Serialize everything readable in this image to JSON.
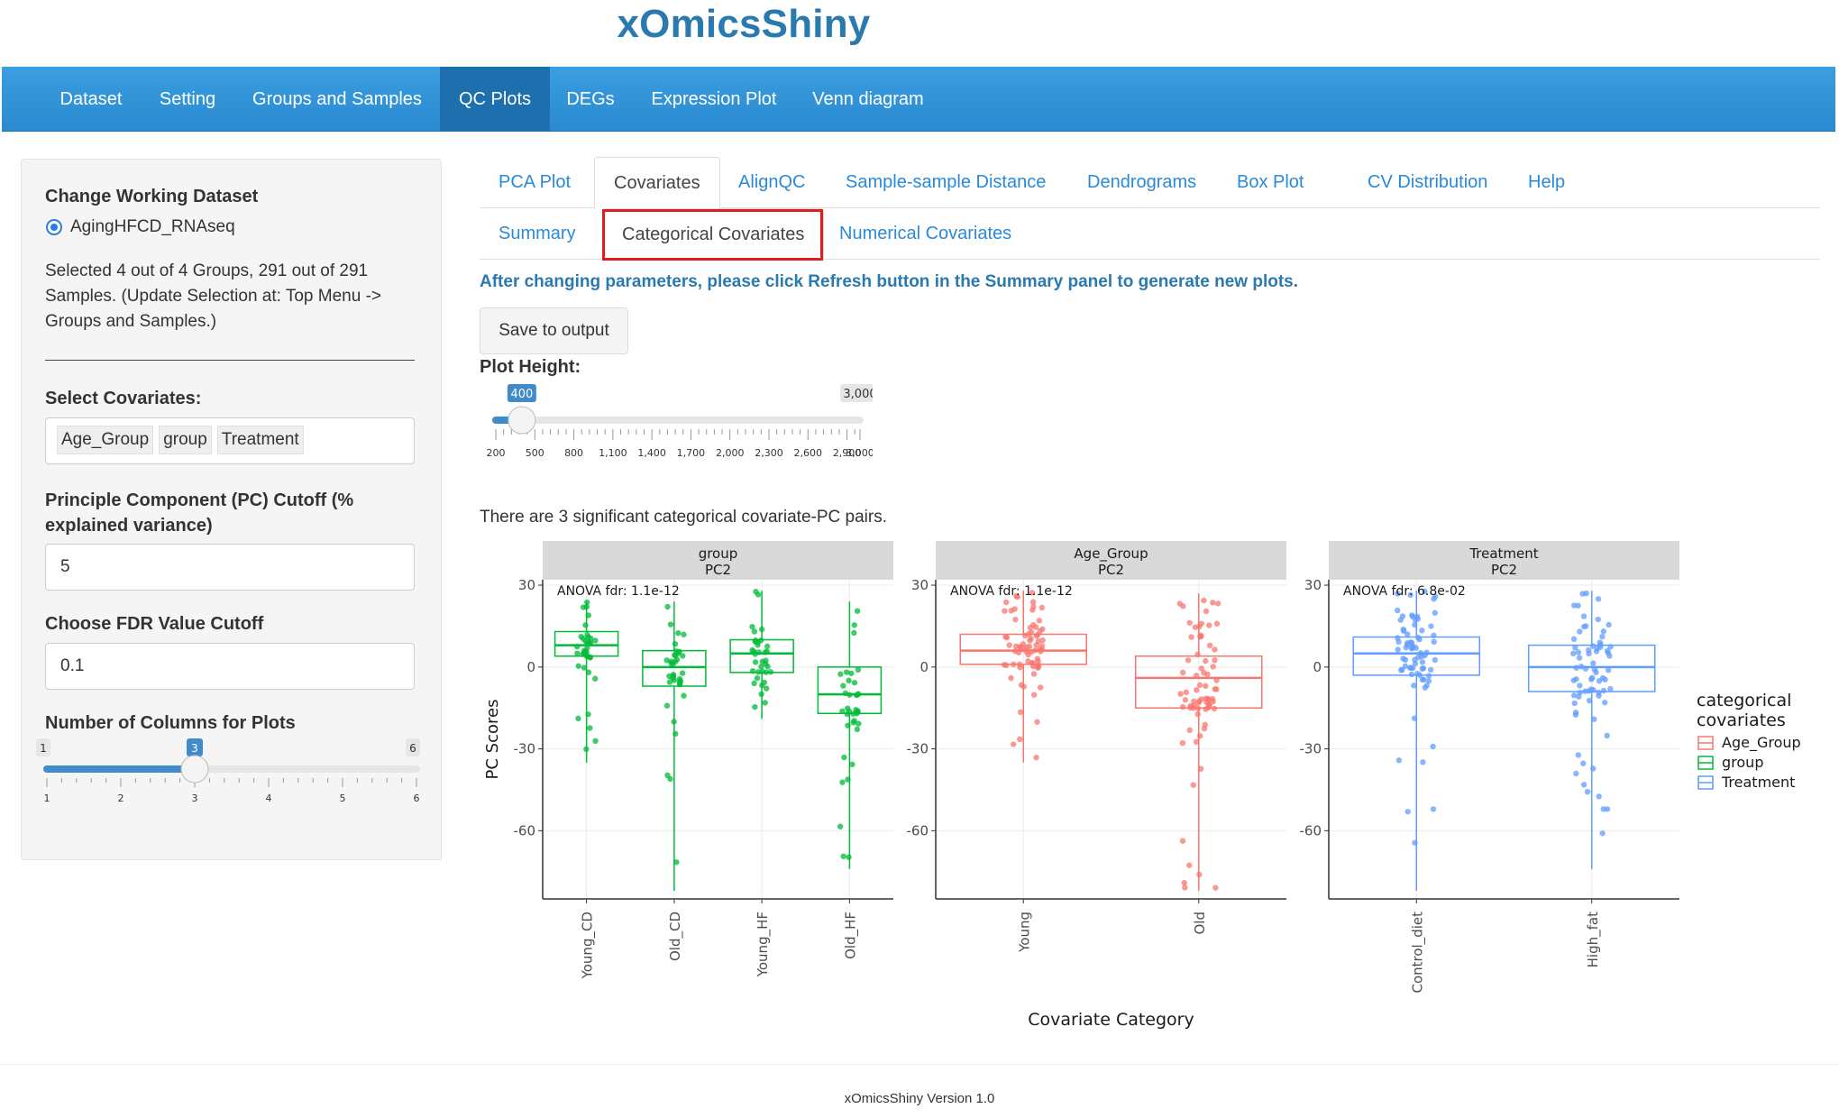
{
  "app_title": "xOmicsShiny",
  "nav": {
    "items": [
      {
        "label": "Dataset",
        "active": false
      },
      {
        "label": "Setting",
        "active": false
      },
      {
        "label": "Groups and Samples",
        "active": false
      },
      {
        "label": "QC Plots",
        "active": true
      },
      {
        "label": "DEGs",
        "active": false
      },
      {
        "label": "Expression Plot",
        "active": false
      },
      {
        "label": "Venn diagram",
        "active": false
      }
    ]
  },
  "sidebar": {
    "working_dataset_label": "Change Working Dataset",
    "dataset_option": "AgingHFCD_RNAseq",
    "selection_summary": "Selected 4 out of 4 Groups, 291 out of 291 Samples. (Update Selection at: Top Menu -> Groups and Samples.)",
    "select_covariates_label": "Select Covariates:",
    "covariates": [
      "Age_Group",
      "group",
      "Treatment"
    ],
    "pc_cutoff_label": "Principle Component (PC) Cutoff (% explained variance)",
    "pc_cutoff_value": "5",
    "fdr_label": "Choose FDR Value Cutoff",
    "fdr_value": "0.1",
    "columns_label": "Number of Columns for Plots",
    "columns_slider": {
      "min": 1,
      "max": 6,
      "value": 3,
      "ticks": [
        "1",
        "2",
        "3",
        "4",
        "5",
        "6"
      ]
    }
  },
  "tabs": {
    "main": [
      {
        "label": "PCA Plot",
        "active": false
      },
      {
        "label": "Covariates",
        "active": true
      },
      {
        "label": "AlignQC",
        "active": false
      },
      {
        "label": "Sample-sample Distance",
        "active": false
      },
      {
        "label": "Dendrograms",
        "active": false
      },
      {
        "label": "Box Plot",
        "active": false
      },
      {
        "label": "CV Distribution",
        "active": false
      },
      {
        "label": "Help",
        "active": false
      }
    ],
    "sub": [
      {
        "label": "Summary",
        "active": false
      },
      {
        "label": "Categorical Covariates",
        "active": true
      },
      {
        "label": "Numerical Covariates",
        "active": false
      }
    ]
  },
  "content": {
    "info": "After changing parameters, please click Refresh button in the Summary panel to generate new plots.",
    "save_button": "Save to output",
    "plot_height_label": "Plot Height:",
    "plot_height_slider": {
      "min": 200,
      "max": 3000,
      "value": 400,
      "min_label": "200",
      "max_label": "3,000",
      "value_label": "400",
      "ticks": [
        "200",
        "500",
        "800",
        "1,100",
        "1,400",
        "1,700",
        "2,000",
        "2,300",
        "2,600",
        "2,900",
        "3,000"
      ]
    },
    "significant_text": "There are 3 significant categorical covariate-PC pairs."
  },
  "chart_data": {
    "type": "boxplot",
    "ylabel": "PC Scores",
    "xlabel": "Covariate Category",
    "ylim": [
      -85,
      32
    ],
    "yticks": [
      30,
      0,
      -30,
      -60
    ],
    "legend": {
      "title": "categorical\ncovariates",
      "position": "right",
      "entries": [
        {
          "name": "Age_Group",
          "color": "#F8766D"
        },
        {
          "name": "group",
          "color": "#00BA38"
        },
        {
          "name": "Treatment",
          "color": "#619CFF"
        }
      ]
    },
    "panels": [
      {
        "strip_title": "group",
        "strip_subtitle": "PC2",
        "annotation": "ANOVA fdr: 1.1e-12",
        "color": "#00BA38",
        "boxes": [
          {
            "category": "Young_CD",
            "min": -35,
            "q1": 4,
            "median": 8,
            "q3": 13,
            "max": 24
          },
          {
            "category": "Old_CD",
            "min": -82,
            "q1": -7,
            "median": 0,
            "q3": 6,
            "max": 24
          },
          {
            "category": "Young_HF",
            "min": -19,
            "q1": -2,
            "median": 5,
            "q3": 10,
            "max": 28
          },
          {
            "category": "Old_HF",
            "min": -74,
            "q1": -17,
            "median": -10,
            "q3": 0,
            "max": 24
          }
        ]
      },
      {
        "strip_title": "Age_Group",
        "strip_subtitle": "PC2",
        "annotation": "ANOVA fdr: 1.1e-12",
        "color": "#F8766D",
        "boxes": [
          {
            "category": "Young",
            "min": -35,
            "q1": 1,
            "median": 6,
            "q3": 12,
            "max": 28
          },
          {
            "category": "Old",
            "min": -82,
            "q1": -15,
            "median": -4,
            "q3": 4,
            "max": 27
          }
        ]
      },
      {
        "strip_title": "Treatment",
        "strip_subtitle": "PC2",
        "annotation": "ANOVA fdr: 6.8e-02",
        "color": "#619CFF",
        "boxes": [
          {
            "category": "Control_diet",
            "min": -82,
            "q1": -3,
            "median": 5,
            "q3": 11,
            "max": 28
          },
          {
            "category": "High_fat",
            "min": -74,
            "q1": -9,
            "median": 0,
            "q3": 8,
            "max": 28
          }
        ]
      }
    ]
  },
  "footer": "xOmicsShiny Version 1.0"
}
